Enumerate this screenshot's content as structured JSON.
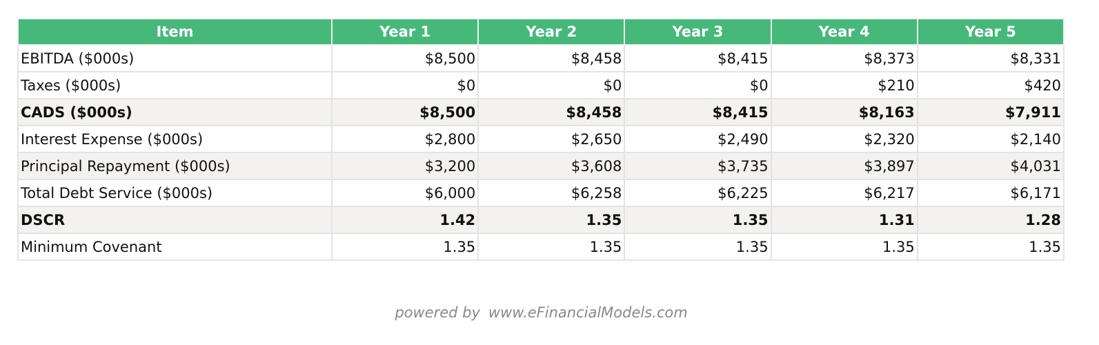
{
  "table": {
    "header": [
      "Item",
      "Year 1",
      "Year 2",
      "Year 3",
      "Year 4",
      "Year 5"
    ],
    "rows": [
      [
        "EBITDA ($000s)",
        "$8,500",
        "$8,458",
        "$8,415",
        "$8,373",
        "$8,331"
      ],
      [
        "Taxes ($000s)",
        "$0",
        "$0",
        "$0",
        "$210",
        "$420"
      ],
      [
        "CADS ($000s)",
        "$8,500",
        "$8,458",
        "$8,415",
        "$8,163",
        "$7,911"
      ],
      [
        "Interest Expense ($000s)",
        "$2,800",
        "$2,650",
        "$2,490",
        "$2,320",
        "$2,140"
      ],
      [
        "Principal Repayment ($000s)",
        "$3,200",
        "$3,608",
        "$3,735",
        "$3,897",
        "$4,031"
      ],
      [
        "Total Debt Service ($000s)",
        "$6,000",
        "$6,258",
        "$6,225",
        "$6,217",
        "$6,171"
      ],
      [
        "DSCR",
        "1.42",
        "1.35",
        "1.35",
        "1.31",
        "1.28"
      ],
      [
        "Minimum Covenant",
        "1.35",
        "1.35",
        "1.35",
        "1.35",
        "1.35"
      ]
    ]
  },
  "footer": {
    "prefix": "powered by",
    "site": "www.eFinancialModels.com"
  }
}
